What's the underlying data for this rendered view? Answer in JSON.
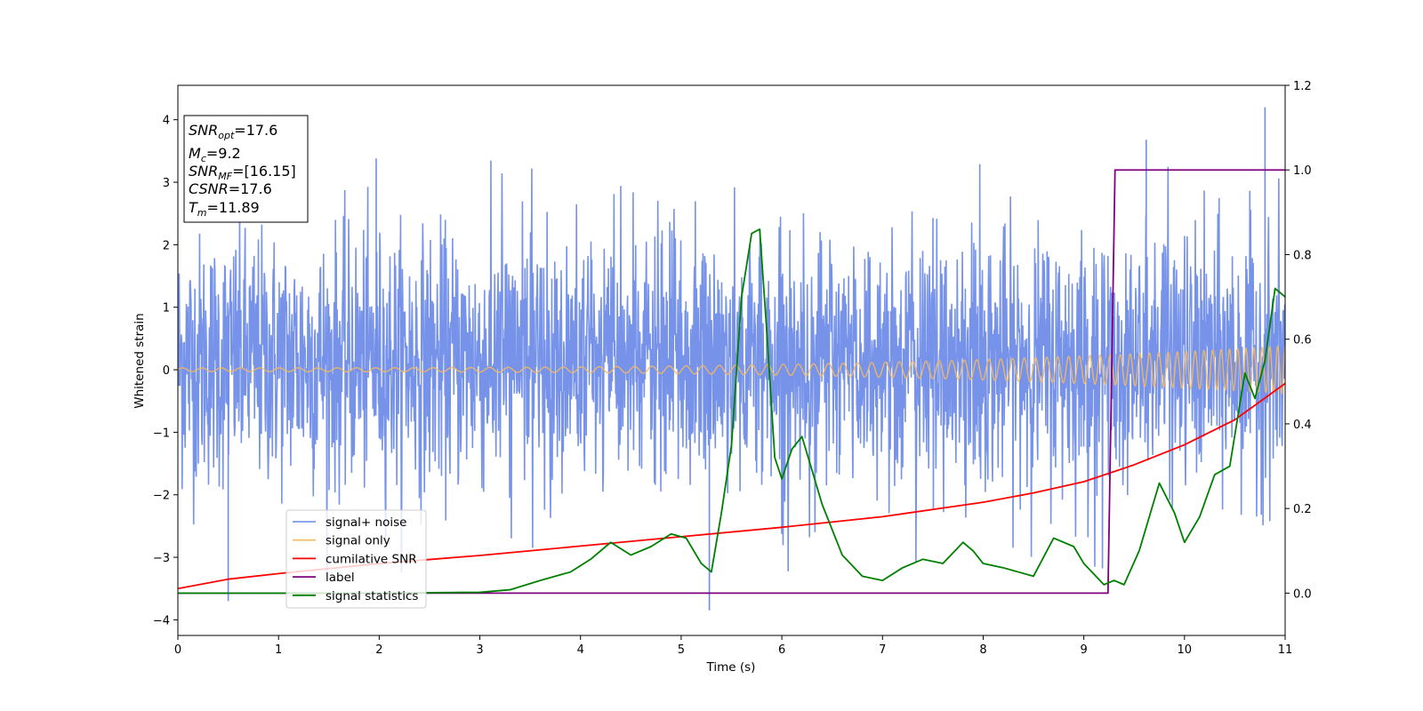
{
  "chart_data": {
    "type": "line",
    "xlabel": "Time (s)",
    "ylabel": "Whitened strain",
    "xlim": [
      0,
      11
    ],
    "ylim_left": [
      -4.25,
      4.55
    ],
    "ylim_right": [
      -0.1,
      1.2
    ],
    "x_ticks": [
      0,
      1,
      2,
      3,
      4,
      5,
      6,
      7,
      8,
      9,
      10,
      11
    ],
    "y_ticks_left": [
      -4,
      -3,
      -2,
      -1,
      0,
      1,
      2,
      3,
      4
    ],
    "y_ticks_right": [
      0.0,
      0.2,
      0.4,
      0.6,
      0.8,
      1.0,
      1.2
    ],
    "legend_position": "lower-left",
    "colors": {
      "signal_noise": "#6f8de8",
      "signal_only": "#f5b862",
      "cumulative_snr": "#ff0000",
      "label": "#800080",
      "signal_statistics": "#008000"
    },
    "series": [
      {
        "name": "signal+ noise",
        "axis": "left",
        "note_only_envelope": true,
        "typical_range": [
          -1.8,
          2.2
        ],
        "extremes": {
          "max": 4.2,
          "min": -3.85
        }
      },
      {
        "name": "signal only",
        "axis": "left",
        "amplitude_start": 0.03,
        "amplitude_end": 0.38
      },
      {
        "name": "cumilative SNR",
        "axis": "left",
        "x": [
          0,
          0.5,
          1,
          2,
          3,
          4,
          5,
          6,
          7,
          8,
          8.5,
          9,
          9.5,
          10,
          10.5,
          11
        ],
        "values": [
          -3.5,
          -3.35,
          -3.26,
          -3.1,
          -2.97,
          -2.82,
          -2.67,
          -2.52,
          -2.35,
          -2.12,
          -1.97,
          -1.79,
          -1.52,
          -1.2,
          -0.8,
          -0.22
        ]
      },
      {
        "name": "label",
        "axis": "right",
        "x": [
          0,
          9.24,
          9.31,
          11
        ],
        "values": [
          0,
          0,
          1,
          1
        ]
      },
      {
        "name": "signal statistics",
        "axis": "right",
        "x": [
          0,
          1,
          2,
          3,
          3.3,
          3.6,
          3.9,
          4.1,
          4.3,
          4.5,
          4.7,
          4.9,
          5.05,
          5.2,
          5.3,
          5.4,
          5.5,
          5.6,
          5.7,
          5.78,
          5.85,
          5.93,
          6.0,
          6.1,
          6.2,
          6.3,
          6.4,
          6.6,
          6.8,
          7.0,
          7.2,
          7.4,
          7.6,
          7.8,
          7.9,
          8.0,
          8.2,
          8.5,
          8.7,
          8.9,
          9.0,
          9.2,
          9.3,
          9.4,
          9.55,
          9.75,
          9.9,
          10.0,
          10.15,
          10.3,
          10.45,
          10.6,
          10.7,
          10.8,
          10.9,
          11.0
        ],
        "values": [
          0.0,
          0.0,
          0.0,
          0.002,
          0.008,
          0.03,
          0.05,
          0.08,
          0.12,
          0.09,
          0.11,
          0.14,
          0.13,
          0.07,
          0.05,
          0.19,
          0.35,
          0.7,
          0.85,
          0.86,
          0.62,
          0.32,
          0.27,
          0.34,
          0.37,
          0.29,
          0.21,
          0.09,
          0.04,
          0.03,
          0.06,
          0.08,
          0.07,
          0.12,
          0.1,
          0.07,
          0.06,
          0.04,
          0.13,
          0.11,
          0.07,
          0.02,
          0.03,
          0.02,
          0.1,
          0.26,
          0.19,
          0.12,
          0.18,
          0.28,
          0.3,
          0.52,
          0.46,
          0.55,
          0.72,
          0.7
        ]
      }
    ]
  },
  "info_box": {
    "snr_opt_label": "SNR",
    "snr_opt_sub": "opt",
    "snr_opt_value": "=17.6",
    "mc_label": "M",
    "mc_sub": "c",
    "mc_value": "=9.2",
    "snr_mf_label": "SNR",
    "snr_mf_sub": "MF",
    "snr_mf_value": "=[16.15]",
    "csnr_label": "CSNR",
    "csnr_value": "=17.6",
    "tm_label": "T",
    "tm_sub": "m",
    "tm_value": "=11.89"
  }
}
